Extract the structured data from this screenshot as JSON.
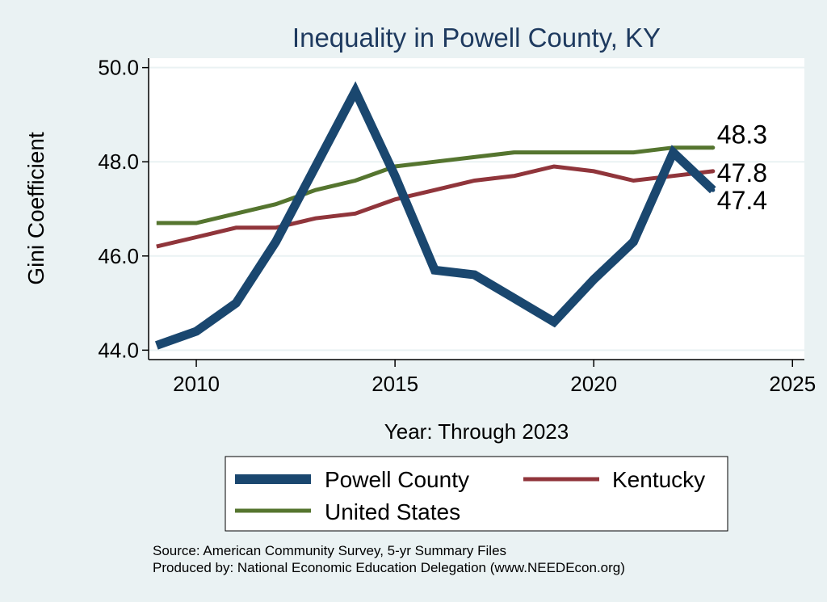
{
  "chart_data": {
    "type": "line",
    "title": "Inequality in Powell County, KY",
    "xlabel": "Year: Through 2023",
    "ylabel": "Gini Coefficient",
    "xlim": [
      2008.8,
      2025.3
    ],
    "ylim": [
      43.8,
      50.2
    ],
    "x_ticks": [
      "2010",
      "2015",
      "2020",
      "2025"
    ],
    "y_ticks": [
      "44.0",
      "46.0",
      "48.0",
      "50.0"
    ],
    "x": [
      2009,
      2010,
      2011,
      2012,
      2013,
      2014,
      2015,
      2016,
      2017,
      2018,
      2019,
      2020,
      2021,
      2022,
      2023
    ],
    "series": [
      {
        "name": "Powell County",
        "color": "#1a476f",
        "values": [
          44.1,
          44.4,
          45.0,
          46.3,
          47.9,
          49.5,
          47.7,
          45.7,
          45.6,
          45.1,
          44.6,
          45.5,
          46.3,
          48.2,
          47.4
        ],
        "end_label": "47.4"
      },
      {
        "name": "Kentucky",
        "color": "#90353b",
        "values": [
          46.2,
          46.4,
          46.6,
          46.6,
          46.8,
          46.9,
          47.2,
          47.4,
          47.6,
          47.7,
          47.9,
          47.8,
          47.6,
          47.7,
          47.8
        ],
        "end_label": "47.8"
      },
      {
        "name": "United States",
        "color": "#55752f",
        "values": [
          46.7,
          46.7,
          46.9,
          47.1,
          47.4,
          47.6,
          47.9,
          48.0,
          48.1,
          48.2,
          48.2,
          48.2,
          48.2,
          48.3,
          48.3
        ],
        "end_label": "48.3"
      }
    ],
    "legend": [
      "Powell County",
      "Kentucky",
      "United States"
    ],
    "legend_position": "bottom"
  },
  "source_lines": [
    "Source: American Community Survey, 5-yr Summary Files",
    "Produced by: National Economic Education Delegation (www.NEEDEcon.org)"
  ]
}
